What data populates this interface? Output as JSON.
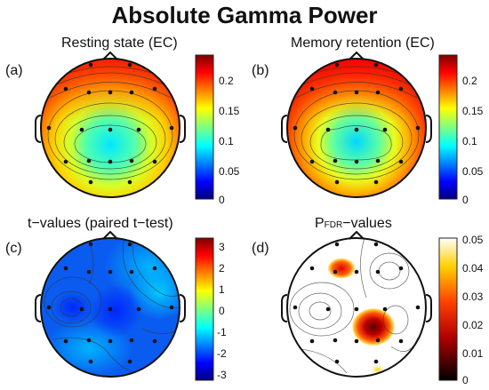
{
  "title": "Absolute Gamma Power",
  "panels": [
    {
      "label": "(a)",
      "subtitle": "Resting state (EC)",
      "colorbar": {
        "ticks": [
          "0.2",
          "0.15",
          "0.1",
          "0.05",
          "0"
        ],
        "range": [
          0,
          0.23
        ],
        "colormap": "jet"
      }
    },
    {
      "label": "(b)",
      "subtitle": "Memory retention (EC)",
      "colorbar": {
        "ticks": [
          "0.2",
          "0.15",
          "0.1",
          "0.05",
          "0"
        ],
        "range": [
          0,
          0.23
        ],
        "colormap": "jet"
      }
    },
    {
      "label": "(c)",
      "subtitle": "t−values (paired t−test)",
      "colorbar": {
        "ticks": [
          "3",
          "2",
          "1",
          "0",
          "-1",
          "-2",
          "-3"
        ],
        "range": [
          -3.3,
          3.3
        ],
        "colormap": "jet"
      }
    },
    {
      "label": "(d)",
      "subtitle_main": "P",
      "subtitle_sub": "FDR",
      "subtitle_tail": "−values",
      "colorbar": {
        "ticks": [
          "0.05",
          "0.04",
          "0.03",
          "0.02",
          "0.01",
          "0"
        ],
        "range": [
          0,
          0.05
        ],
        "colormap": "hot"
      }
    }
  ],
  "colors": {
    "jet": [
      "#00007f",
      "#0000ff",
      "#007fff",
      "#00ffff",
      "#7fff7f",
      "#ffff00",
      "#ff7f00",
      "#ff0000",
      "#7f0000"
    ],
    "hot": [
      "#000000",
      "#7f0000",
      "#ff0000",
      "#ff7f00",
      "#ffff00",
      "#ffffff"
    ]
  }
}
